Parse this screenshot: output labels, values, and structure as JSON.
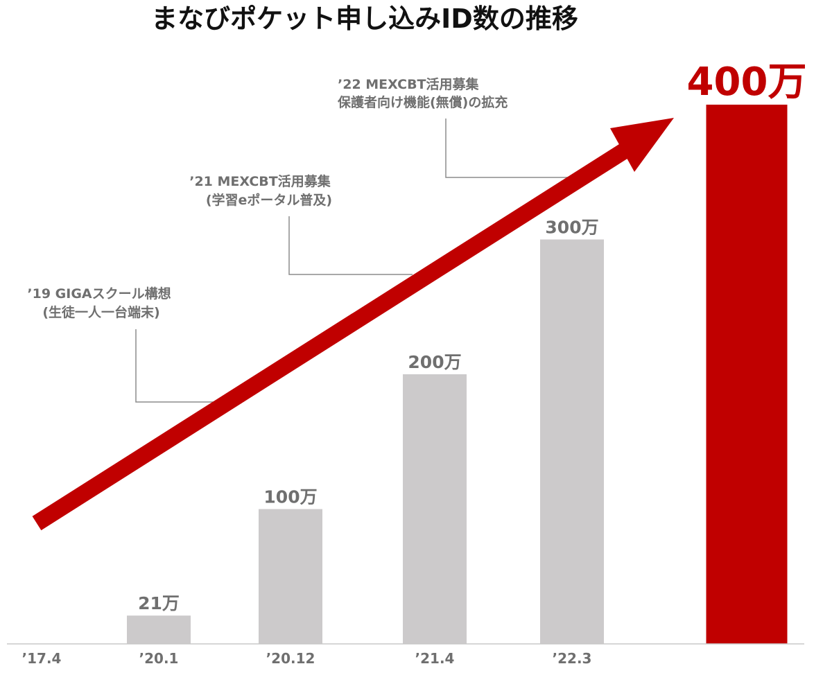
{
  "chart_data": {
    "type": "bar",
    "title": "まなびポケット申し込みID数の推移",
    "categories": [
      "’17.4",
      "’20.1",
      "’20.12",
      "’21.4",
      "’22.3",
      ""
    ],
    "values": [
      0,
      21,
      100,
      200,
      300,
      400
    ],
    "value_labels": [
      "",
      "21万",
      "100万",
      "200万",
      "300万",
      "400万"
    ],
    "unit": "万",
    "ylim": [
      0,
      420
    ],
    "grid": false,
    "legend": "none",
    "highlight_index": 5,
    "annotations": [
      {
        "line1": "’19 GIGAスクール構想",
        "line2": "(生徒一人一台端末)"
      },
      {
        "line1": "’21 MEXCBT活用募集",
        "line2": "(学習eポータル普及)"
      },
      {
        "line1": "’22 MEXCBT活用募集",
        "line2": "保護者向け機能(無償)の拡充"
      }
    ],
    "trend_arrow": true
  },
  "colors": {
    "bar": "#cccacb",
    "highlight": "#c00000",
    "text": "#6f6f6f",
    "title": "#111111",
    "leader": "#8c8c8c",
    "axis": "#c8c8c8"
  }
}
